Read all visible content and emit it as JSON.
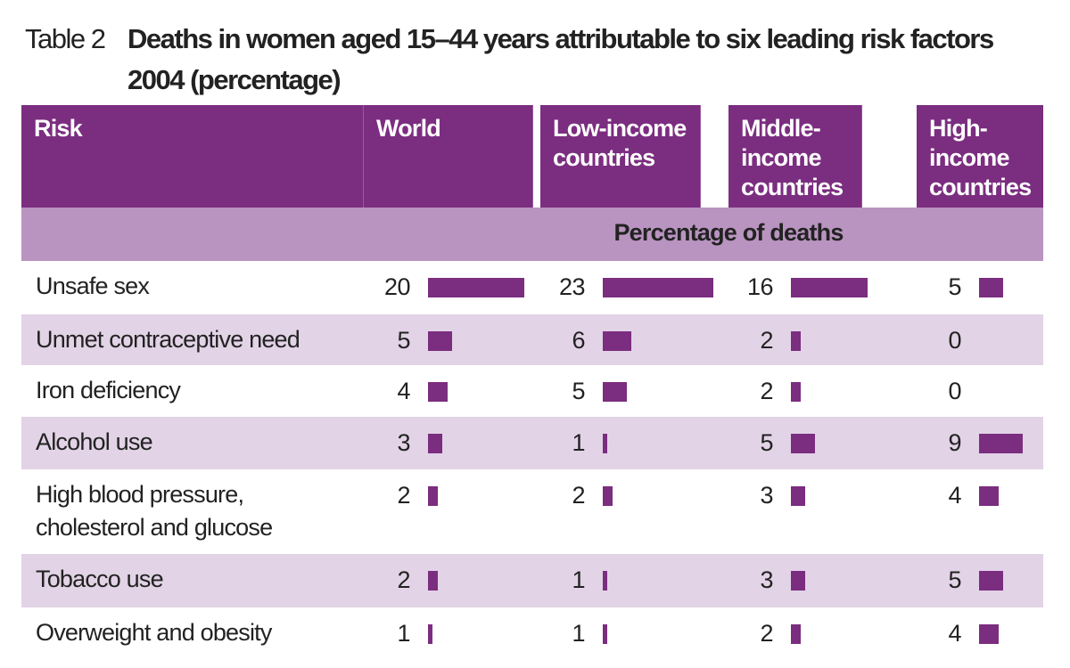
{
  "table_label": "Table 2",
  "title": "Deaths in women aged 15–44 years attributable to six leading risk factors",
  "title_line2": "2004 (percentage)",
  "table": {
    "header": [
      "Risk",
      "World",
      "Low-income countries",
      "Middle-income countries",
      "High-income countries"
    ],
    "subheader": "Percentage of deaths",
    "rows": [
      {
        "risk": "Unsafe sex",
        "values": [
          20,
          23,
          16,
          5
        ]
      },
      {
        "risk": "Unmet contraceptive need",
        "values": [
          5,
          6,
          2,
          0
        ]
      },
      {
        "risk": "Iron deficiency",
        "values": [
          4,
          5,
          2,
          0
        ]
      },
      {
        "risk": "Alcohol use",
        "values": [
          3,
          1,
          5,
          9
        ]
      },
      {
        "risk": "High blood pressure, cholesterol and glucose",
        "values": [
          2,
          2,
          3,
          4
        ]
      },
      {
        "risk": "Tobacco use",
        "values": [
          2,
          1,
          3,
          5
        ]
      },
      {
        "risk": "Overweight and obesity",
        "values": [
          1,
          1,
          2,
          4
        ]
      }
    ]
  },
  "bar_color": "#7b2d80"
}
